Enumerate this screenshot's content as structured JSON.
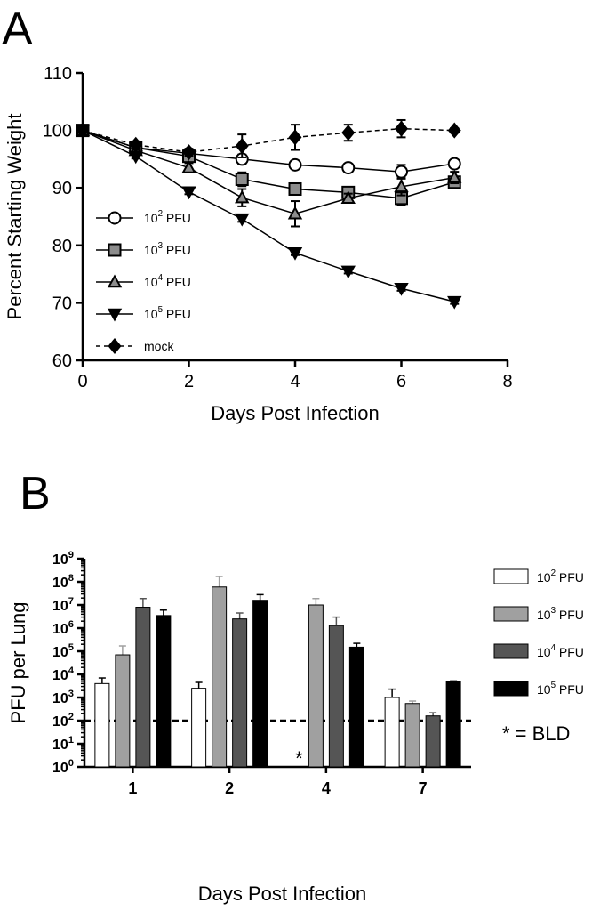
{
  "chart_data": [
    {
      "panel": "A",
      "type": "line",
      "xlabel": "Days Post Infection",
      "ylabel": "Percent  Starting Weight",
      "xlim": [
        0,
        8
      ],
      "ylim": [
        60,
        110
      ],
      "xticks": [
        "0",
        "2",
        "4",
        "6",
        "8"
      ],
      "yticks": [
        "60",
        "70",
        "80",
        "90",
        "100",
        "110"
      ],
      "legend_position": "left",
      "series": [
        {
          "base": "10",
          "exp": "2",
          "unit": " PFU",
          "marker": "circle",
          "fill": "#ffffff",
          "dash": "solid",
          "x": [
            0,
            1,
            2,
            3,
            4,
            5,
            6,
            7
          ],
          "y": [
            100,
            97,
            96,
            95,
            94,
            93.5,
            92.8,
            94.2
          ],
          "err": [
            0,
            0.5,
            0.5,
            0.8,
            0.5,
            0.5,
            1.2,
            0.5
          ]
        },
        {
          "base": "10",
          "exp": "3",
          "unit": " PFU",
          "marker": "square",
          "fill": "#8c8c8c",
          "dash": "solid",
          "x": [
            0,
            1,
            2,
            3,
            4,
            5,
            6,
            7
          ],
          "y": [
            100,
            97,
            95.5,
            91.5,
            89.8,
            89.2,
            88.2,
            91
          ],
          "err": [
            0,
            0.5,
            0.8,
            1.2,
            0.8,
            0.8,
            1.2,
            0.8
          ]
        },
        {
          "base": "10",
          "exp": "4",
          "unit": " PFU",
          "marker": "triangle",
          "fill": "#8c8c8c",
          "dash": "solid",
          "x": [
            0,
            1,
            2,
            3,
            4,
            5,
            6,
            7
          ],
          "y": [
            100,
            96.5,
            93.5,
            88.3,
            85.5,
            88.2,
            90.2,
            91.8
          ],
          "err": [
            0,
            0.5,
            0.8,
            1.5,
            2.2,
            0.8,
            1.5,
            1.0
          ]
        },
        {
          "base": "10",
          "exp": "5",
          "unit": " PFU",
          "marker": "triangle-down",
          "fill": "#000000",
          "dash": "solid",
          "x": [
            0,
            1,
            2,
            3,
            4,
            5,
            6,
            7
          ],
          "y": [
            100,
            95.5,
            89.3,
            84.6,
            78.7,
            75.5,
            72.5,
            70.2
          ],
          "err": [
            0,
            0.4,
            0.4,
            0.5,
            0.4,
            0.4,
            0.4,
            0.4
          ]
        },
        {
          "base": "mock",
          "exp": "",
          "unit": "",
          "marker": "diamond",
          "fill": "#000000",
          "dash": "dashed",
          "x": [
            0,
            1,
            2,
            3,
            4,
            5,
            6,
            7
          ],
          "y": [
            100,
            97.5,
            96.2,
            97.3,
            98.8,
            99.6,
            100.3,
            100
          ],
          "err": [
            0,
            0.6,
            0.6,
            2,
            2.2,
            1.4,
            1.5,
            0.4
          ]
        }
      ]
    },
    {
      "panel": "B",
      "type": "bar",
      "xlabel": "Days Post Infection",
      "ylabel": "PFU per Lung",
      "yscale": "log",
      "ylim": [
        1,
        1000000000
      ],
      "ytick_exponents": [
        "0",
        "1",
        "2",
        "3",
        "4",
        "5",
        "6",
        "7",
        "8",
        "9"
      ],
      "categories": [
        "1",
        "2",
        "4",
        "7"
      ],
      "threshold_line": 100,
      "annotation": "*",
      "annotation_category": "4",
      "legend_position": "right",
      "series": [
        {
          "base": "10",
          "exp": "2",
          "unit": " PFU",
          "fill": "#ffffff",
          "values": [
            4000,
            2500,
            null,
            1000
          ],
          "err_top": [
            7000,
            4500,
            null,
            2300
          ]
        },
        {
          "base": "10",
          "exp": "3",
          "unit": " PFU",
          "fill": "#a0a0a0",
          "values": [
            70000,
            60000000,
            10000000,
            550
          ],
          "err_top": [
            170000,
            170000000,
            19000000,
            700
          ]
        },
        {
          "base": "10",
          "exp": "4",
          "unit": " PFU",
          "fill": "#555555",
          "values": [
            8000000,
            2500000,
            1300000,
            160
          ],
          "err_top": [
            19000000,
            4500000,
            3000000,
            220
          ]
        },
        {
          "base": "10",
          "exp": "5",
          "unit": " PFU",
          "fill": "#000000",
          "values": [
            3500000,
            16000000,
            150000,
            5000
          ],
          "err_top": [
            6000000,
            28000000,
            220000,
            5200
          ]
        }
      ]
    }
  ],
  "labels": {
    "panel_a": "A",
    "panel_b": "B",
    "bld_note": "* = BLD"
  }
}
